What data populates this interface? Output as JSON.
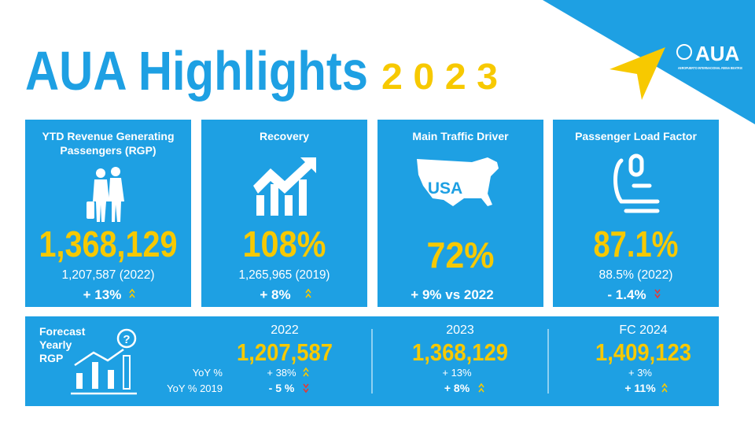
{
  "header": {
    "title": "AUA Highlights",
    "year": "2 0 2 3"
  },
  "logo": {
    "name": "AUA",
    "tagline": "AEROPUERTO INTERNACIONAL REINA BEATRIX"
  },
  "cards": [
    {
      "title_lines": [
        "YTD Revenue Generating",
        "Passengers (RGP)"
      ],
      "value": "1,368,129",
      "comparison": "1,207,587 (2022)",
      "change": "+ 13%"
    },
    {
      "title_lines": [
        "Recovery"
      ],
      "value": "108%",
      "comparison": "1,265,965 (2019)",
      "change": "+ 8%"
    },
    {
      "title_lines": [
        "Main Traffic Driver"
      ],
      "icon_label": "USA",
      "value": "72%",
      "change": "+ 9% vs 2022"
    },
    {
      "title_lines": [
        "Passenger Load Factor"
      ],
      "value": "87.1%",
      "comparison": "88.5% (2022)",
      "change": "-  1.4%"
    }
  ],
  "forecast": {
    "title_lines": [
      "Forecast",
      "Yearly",
      "RGP"
    ],
    "row_labels": [
      "YoY %",
      "YoY % 2019"
    ],
    "columns": [
      {
        "year": "2022",
        "value": "1,207,587",
        "yoy": "+   38%",
        "yoy_2019": "- 5 %"
      },
      {
        "year": "2023",
        "value": "1,368,129",
        "yoy": "+   13%",
        "yoy_2019": "+  8%"
      },
      {
        "year": "FC 2024",
        "value": "1,409,123",
        "yoy": "+   3%",
        "yoy_2019": "+  11%"
      }
    ]
  }
}
